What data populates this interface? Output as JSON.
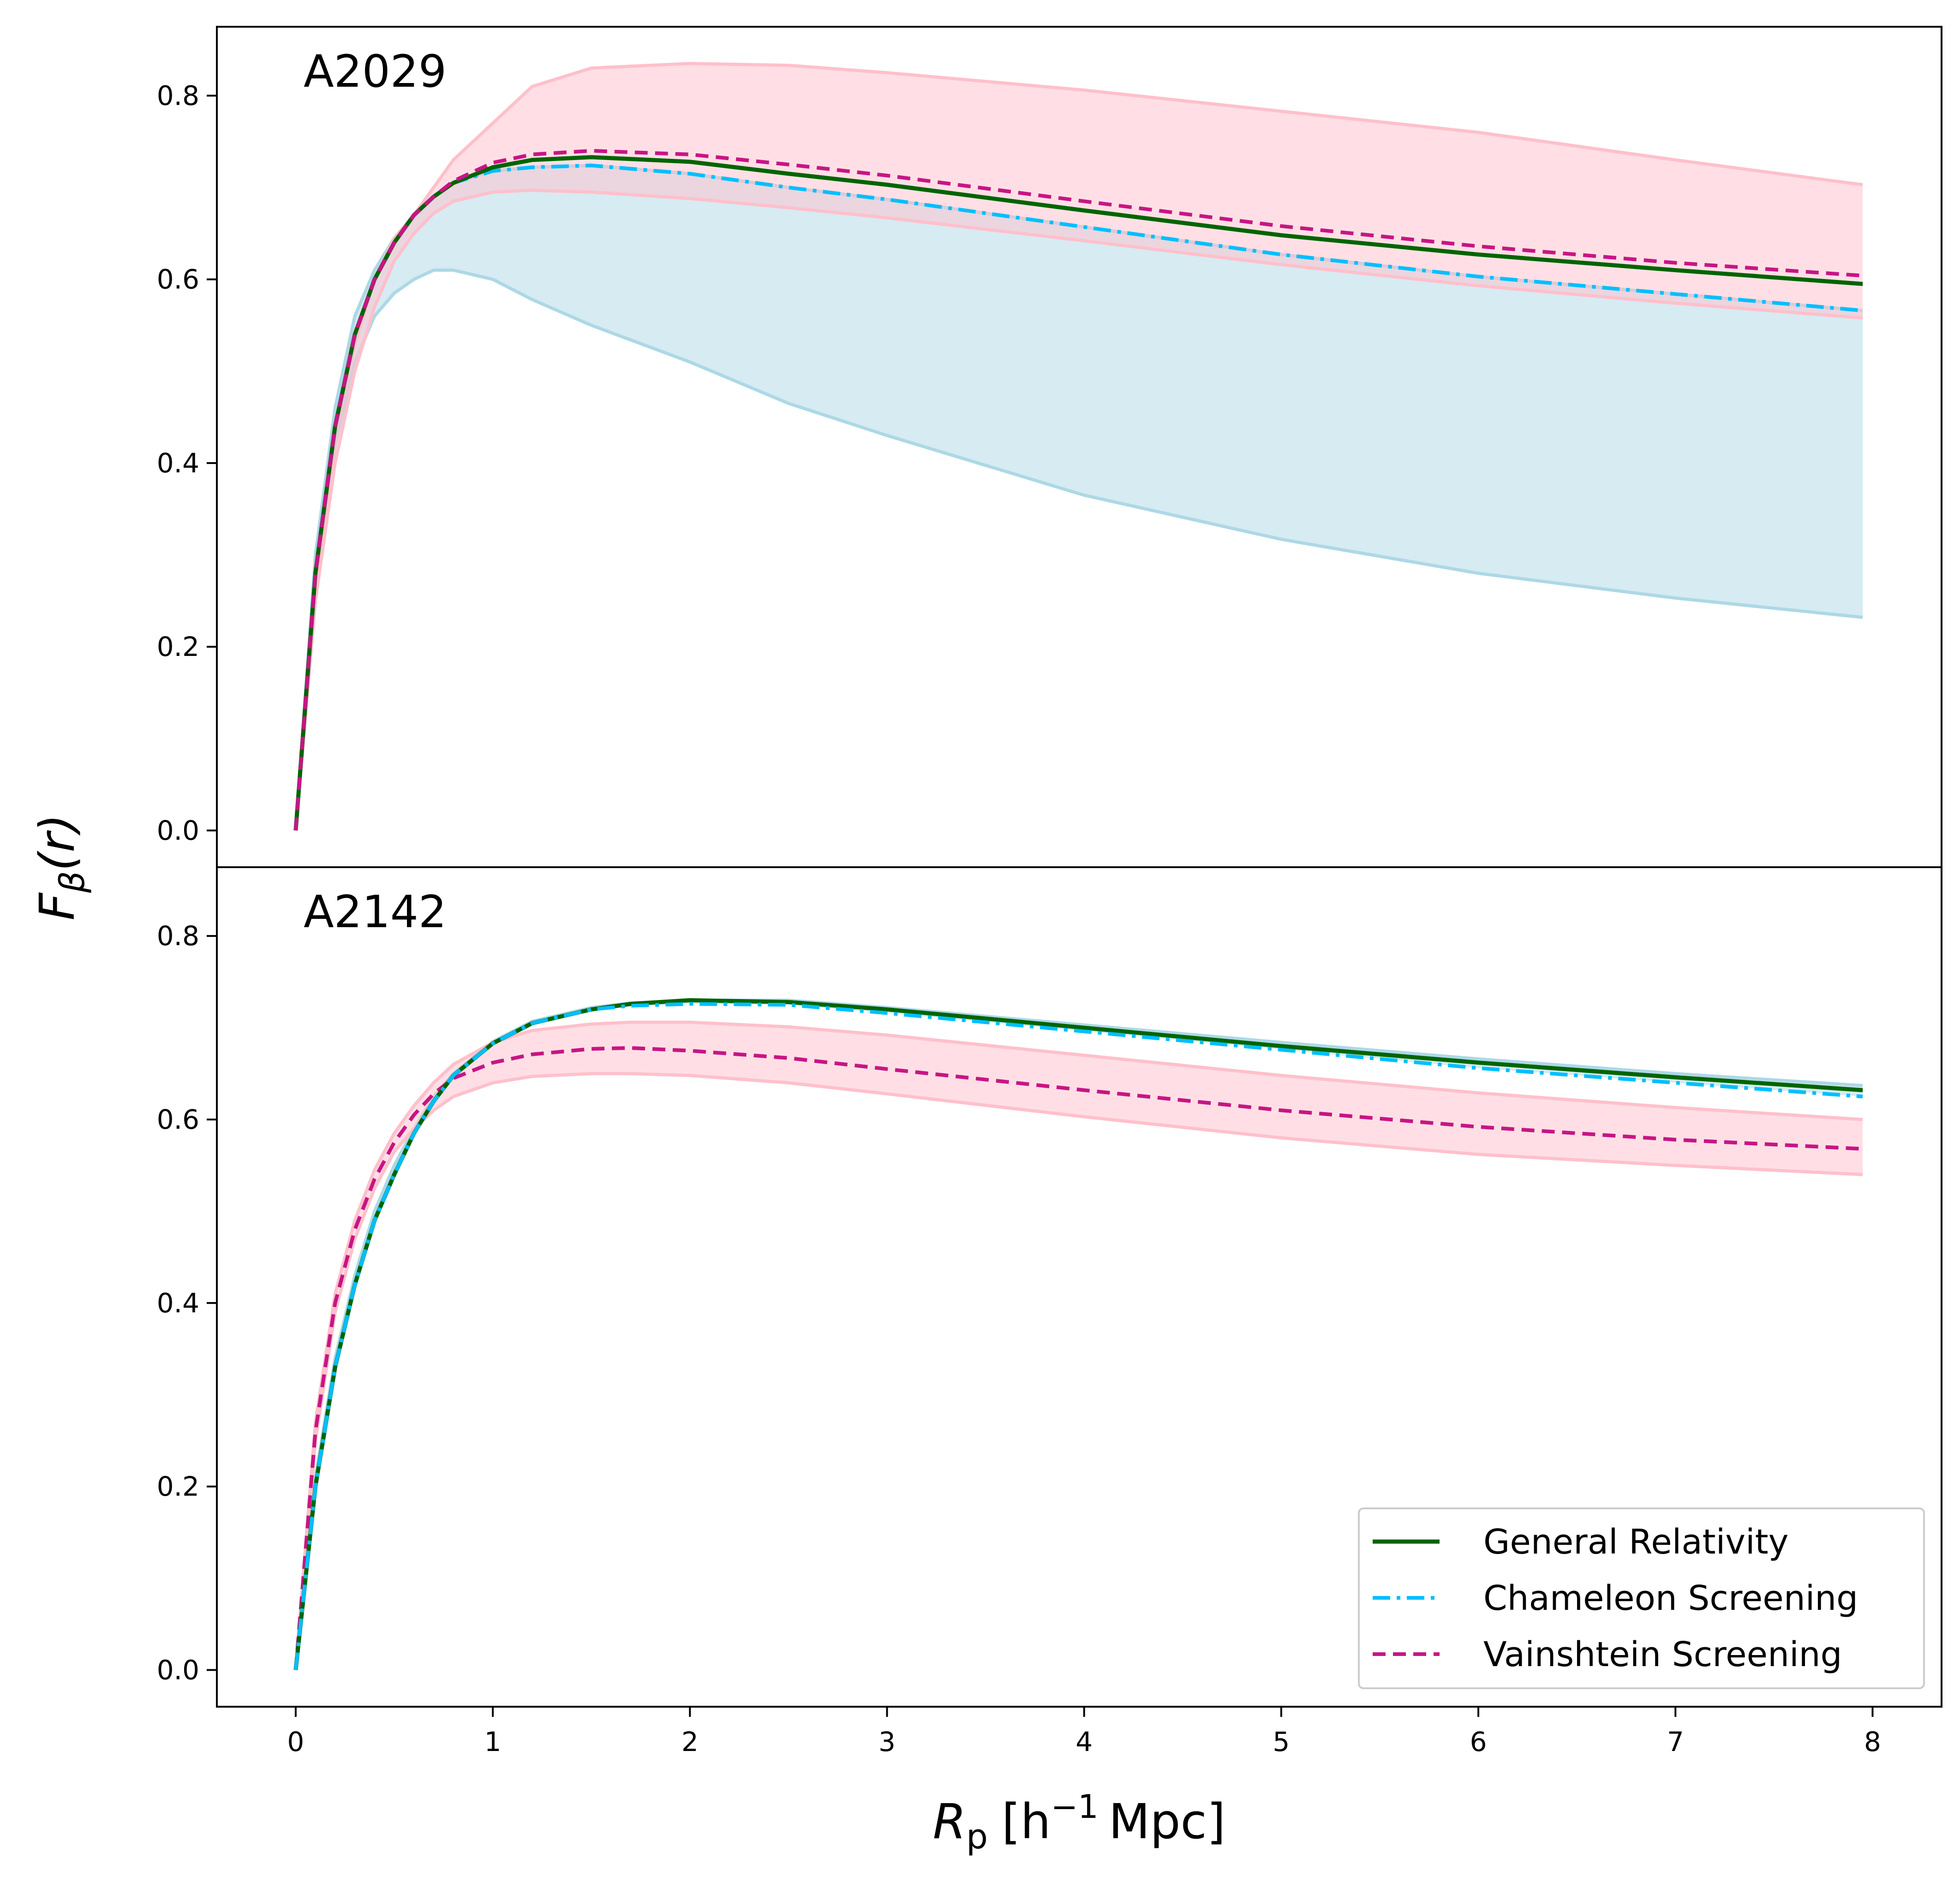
{
  "chart_data": {
    "type": "line",
    "xlabel": "R_p [h^-1 Mpc]",
    "xlabel_main": "R",
    "xlabel_sub": "p",
    "xlabel_unit_open": "[h",
    "xlabel_unit_exp": "−1",
    "xlabel_unit_close": "Mpc]",
    "ylabel": "F_β(r)",
    "ylabel_main": "F",
    "ylabel_sub": "β",
    "ylabel_arg": "(r)",
    "xlim": [
      -0.4,
      8.35
    ],
    "ylim": [
      -0.04,
      0.875
    ],
    "x_ticks": [
      0,
      1,
      2,
      3,
      4,
      5,
      6,
      7,
      8
    ],
    "x_tick_labels": [
      "0",
      "1",
      "2",
      "3",
      "4",
      "5",
      "6",
      "7",
      "8"
    ],
    "y_ticks": [
      0.0,
      0.2,
      0.4,
      0.6,
      0.8
    ],
    "y_tick_labels": [
      "0.0",
      "0.2",
      "0.4",
      "0.6",
      "0.8"
    ],
    "colors": {
      "gr": "#006400",
      "chameleon": "#00bfff",
      "vainshtein": "#c71585",
      "band_chameleon_fill": "#add8e6",
      "band_vainshtein_fill": "#ffc0cb"
    },
    "legend": {
      "position": "lower-right",
      "entries": [
        {
          "label": "General Relativity",
          "style": "solid",
          "color": "#006400"
        },
        {
          "label": "Chameleon Screening",
          "style": "dashdot",
          "color": "#00bfff"
        },
        {
          "label": "Vainshtein Screening",
          "style": "dashed",
          "color": "#c71585"
        }
      ]
    },
    "panels": [
      {
        "name": "A2029",
        "label": "A2029",
        "x": [
          0,
          0.1,
          0.2,
          0.3,
          0.4,
          0.5,
          0.6,
          0.7,
          0.8,
          1.0,
          1.2,
          1.5,
          2.0,
          2.5,
          3.0,
          4.0,
          5.0,
          6.0,
          7.0,
          7.95
        ],
        "series": [
          {
            "name": "General Relativity",
            "values": [
              0.0,
              0.28,
              0.44,
              0.54,
              0.6,
              0.64,
              0.67,
              0.69,
              0.705,
              0.722,
              0.73,
              0.733,
              0.728,
              0.715,
              0.703,
              0.675,
              0.648,
              0.627,
              0.61,
              0.595
            ]
          },
          {
            "name": "Chameleon Screening",
            "values": [
              0.0,
              0.28,
              0.44,
              0.54,
              0.6,
              0.64,
              0.67,
              0.69,
              0.705,
              0.718,
              0.722,
              0.724,
              0.715,
              0.7,
              0.687,
              0.657,
              0.627,
              0.603,
              0.584,
              0.566
            ]
          },
          {
            "name": "Vainshtein Screening",
            "values": [
              0.0,
              0.28,
              0.44,
              0.54,
              0.6,
              0.64,
              0.67,
              0.69,
              0.707,
              0.727,
              0.736,
              0.74,
              0.736,
              0.725,
              0.713,
              0.685,
              0.658,
              0.636,
              0.618,
              0.604
            ]
          }
        ],
        "bands": [
          {
            "name": "Chameleon range",
            "upper": [
              0.0,
              0.3,
              0.46,
              0.56,
              0.61,
              0.645,
              0.67,
              0.69,
              0.705,
              0.718,
              0.722,
              0.724,
              0.715,
              0.7,
              0.687,
              0.657,
              0.627,
              0.603,
              0.584,
              0.566
            ],
            "lower": [
              0.0,
              0.27,
              0.42,
              0.51,
              0.56,
              0.585,
              0.6,
              0.61,
              0.61,
              0.6,
              0.578,
              0.55,
              0.51,
              0.465,
              0.43,
              0.365,
              0.317,
              0.28,
              0.253,
              0.232
            ]
          },
          {
            "name": "Vainshtein range",
            "upper": [
              0.0,
              0.27,
              0.43,
              0.53,
              0.6,
              0.645,
              0.67,
              0.7,
              0.73,
              0.77,
              0.81,
              0.83,
              0.835,
              0.833,
              0.825,
              0.806,
              0.783,
              0.76,
              0.73,
              0.703
            ],
            "lower": [
              0.0,
              0.25,
              0.4,
              0.5,
              0.57,
              0.62,
              0.65,
              0.672,
              0.685,
              0.695,
              0.697,
              0.695,
              0.688,
              0.678,
              0.667,
              0.642,
              0.616,
              0.593,
              0.574,
              0.558
            ]
          }
        ]
      },
      {
        "name": "A2142",
        "label": "A2142",
        "x": [
          0,
          0.1,
          0.2,
          0.3,
          0.4,
          0.5,
          0.6,
          0.7,
          0.8,
          1.0,
          1.2,
          1.5,
          1.7,
          2.0,
          2.5,
          3.0,
          4.0,
          5.0,
          6.0,
          7.0,
          7.95
        ],
        "series": [
          {
            "name": "General Relativity",
            "values": [
              0.0,
              0.2,
              0.33,
              0.42,
              0.49,
              0.54,
              0.585,
              0.62,
              0.648,
              0.683,
              0.705,
              0.72,
              0.726,
              0.73,
              0.728,
              0.72,
              0.7,
              0.68,
              0.662,
              0.646,
              0.632
            ]
          },
          {
            "name": "Chameleon Screening",
            "values": [
              0.0,
              0.2,
              0.33,
              0.42,
              0.49,
              0.54,
              0.585,
              0.62,
              0.648,
              0.683,
              0.705,
              0.72,
              0.724,
              0.726,
              0.725,
              0.716,
              0.696,
              0.676,
              0.656,
              0.64,
              0.625
            ]
          },
          {
            "name": "Vainshtein Screening",
            "values": [
              0.0,
              0.26,
              0.4,
              0.48,
              0.535,
              0.575,
              0.605,
              0.628,
              0.645,
              0.662,
              0.671,
              0.677,
              0.678,
              0.675,
              0.667,
              0.655,
              0.632,
              0.61,
              0.592,
              0.578,
              0.568
            ]
          }
        ],
        "bands": [
          {
            "name": "Chameleon range",
            "upper": [
              0.0,
              0.21,
              0.34,
              0.43,
              0.5,
              0.55,
              0.59,
              0.625,
              0.65,
              0.685,
              0.707,
              0.722,
              0.727,
              0.73,
              0.73,
              0.722,
              0.703,
              0.684,
              0.666,
              0.65,
              0.637
            ]
          },
          {
            "name": "Vainshtein range",
            "upper": [
              0.0,
              0.27,
              0.41,
              0.49,
              0.545,
              0.585,
              0.615,
              0.64,
              0.66,
              0.684,
              0.697,
              0.704,
              0.706,
              0.706,
              0.701,
              0.692,
              0.67,
              0.648,
              0.629,
              0.613,
              0.6
            ],
            "lower": [
              0.0,
              0.25,
              0.39,
              0.47,
              0.525,
              0.565,
              0.59,
              0.61,
              0.625,
              0.64,
              0.647,
              0.65,
              0.65,
              0.648,
              0.64,
              0.628,
              0.603,
              0.58,
              0.562,
              0.55,
              0.54
            ]
          }
        ]
      }
    ]
  }
}
